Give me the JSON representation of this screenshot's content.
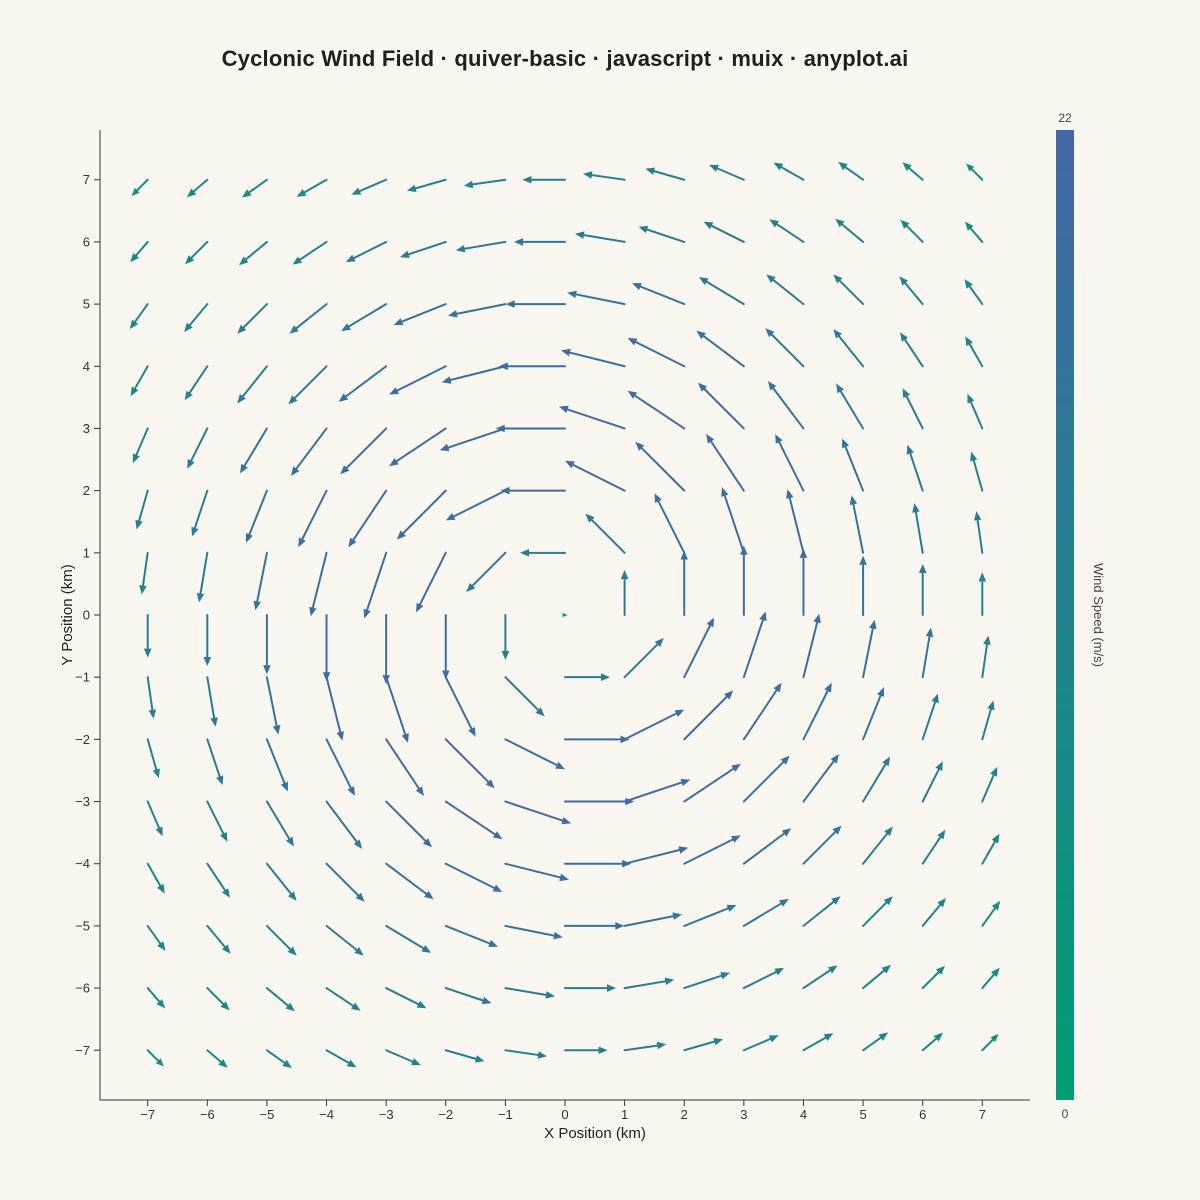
{
  "title": "Cyclonic Wind Field · quiver-basic · javascript · muix · anyplot.ai",
  "chart_data": {
    "type": "quiver",
    "title": "Cyclonic Wind Field · quiver-basic · javascript · muix · anyplot.ai",
    "xlabel": "X Position (km)",
    "ylabel": "Y Position (km)",
    "xlim": [
      -7.8,
      7.8
    ],
    "ylim": [
      -7.8,
      7.8
    ],
    "xticks": [
      -7,
      -6,
      -5,
      -4,
      -3,
      -2,
      -1,
      0,
      1,
      2,
      3,
      4,
      5,
      6,
      7
    ],
    "yticks": [
      -7,
      -6,
      -5,
      -4,
      -3,
      -2,
      -1,
      0,
      1,
      2,
      3,
      4,
      5,
      6,
      7
    ],
    "grid": false,
    "grid_x": [
      -7,
      -6,
      -5,
      -4,
      -3,
      -2,
      -1,
      0,
      1,
      2,
      3,
      4,
      5,
      6,
      7
    ],
    "grid_y": [
      -7,
      -6,
      -5,
      -4,
      -3,
      -2,
      -1,
      0,
      1,
      2,
      3,
      4,
      5,
      6,
      7
    ],
    "field": "cyclonic (counter-clockwise rotation), speed peaks near radius 3 km",
    "colorbar": {
      "label": "Wind Speed (m/s)",
      "min": 0,
      "max": 22,
      "min_label": "0",
      "max_label": "22",
      "colors": [
        "#009e73",
        "#4467a8"
      ]
    }
  }
}
